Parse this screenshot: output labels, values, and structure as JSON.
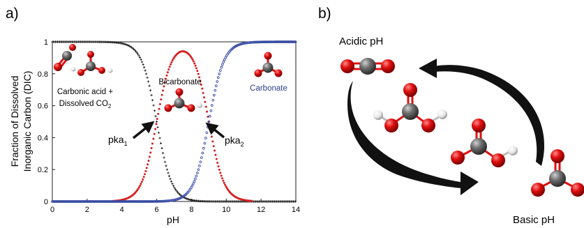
{
  "panel_a": {
    "label": "a)",
    "annotations": {
      "carbonic": "Carbonic acid +",
      "dissolved": "Dissolved CO",
      "dissolved_sub": "2",
      "bicarbonate": "Bicarbonate",
      "carbonate": "Carbonate",
      "pka1": "pka",
      "pka1_sub": "1",
      "pka2": "pka",
      "pka2_sub": "2"
    }
  },
  "panel_b": {
    "label": "b)",
    "acidic": "Acidic pH",
    "basic": "Basic pH"
  },
  "colors": {
    "carbonic": "#1a1a1a",
    "bicarbonate": "#d42020",
    "carbonate": "#3a4fa8",
    "arrow": "#111111",
    "oxygen": "#e01010",
    "carbon": "#6e6e6e",
    "hydrogen": "#e8e8e8"
  },
  "chart_data": {
    "type": "scatter",
    "xlabel": "pH",
    "ylabel_line1": "Fraction of Dissolved",
    "ylabel_line2": "Inorganic Carbon (DIC)",
    "xlim": [
      0,
      14
    ],
    "ylim": [
      0,
      1
    ],
    "xticks": [
      "0",
      "2",
      "4",
      "6",
      "8",
      "10",
      "12",
      "14"
    ],
    "yticks": [
      "0",
      "0.2",
      "0.4",
      "0.6",
      "0.8",
      "1"
    ],
    "pka1": 6.0,
    "pka2": 9.0,
    "grid": false,
    "series": [
      {
        "key": "carbonic",
        "marker": "plus",
        "x_start": 0,
        "x_end": 14,
        "step": 0.06
      },
      {
        "key": "bicarbonate",
        "marker": "dot",
        "x_start": 3.5,
        "x_end": 11.5,
        "step": 0.055
      },
      {
        "key": "carbonate",
        "marker": "circle",
        "x_start": 0,
        "x_end": 14,
        "step": 0.06
      }
    ]
  }
}
